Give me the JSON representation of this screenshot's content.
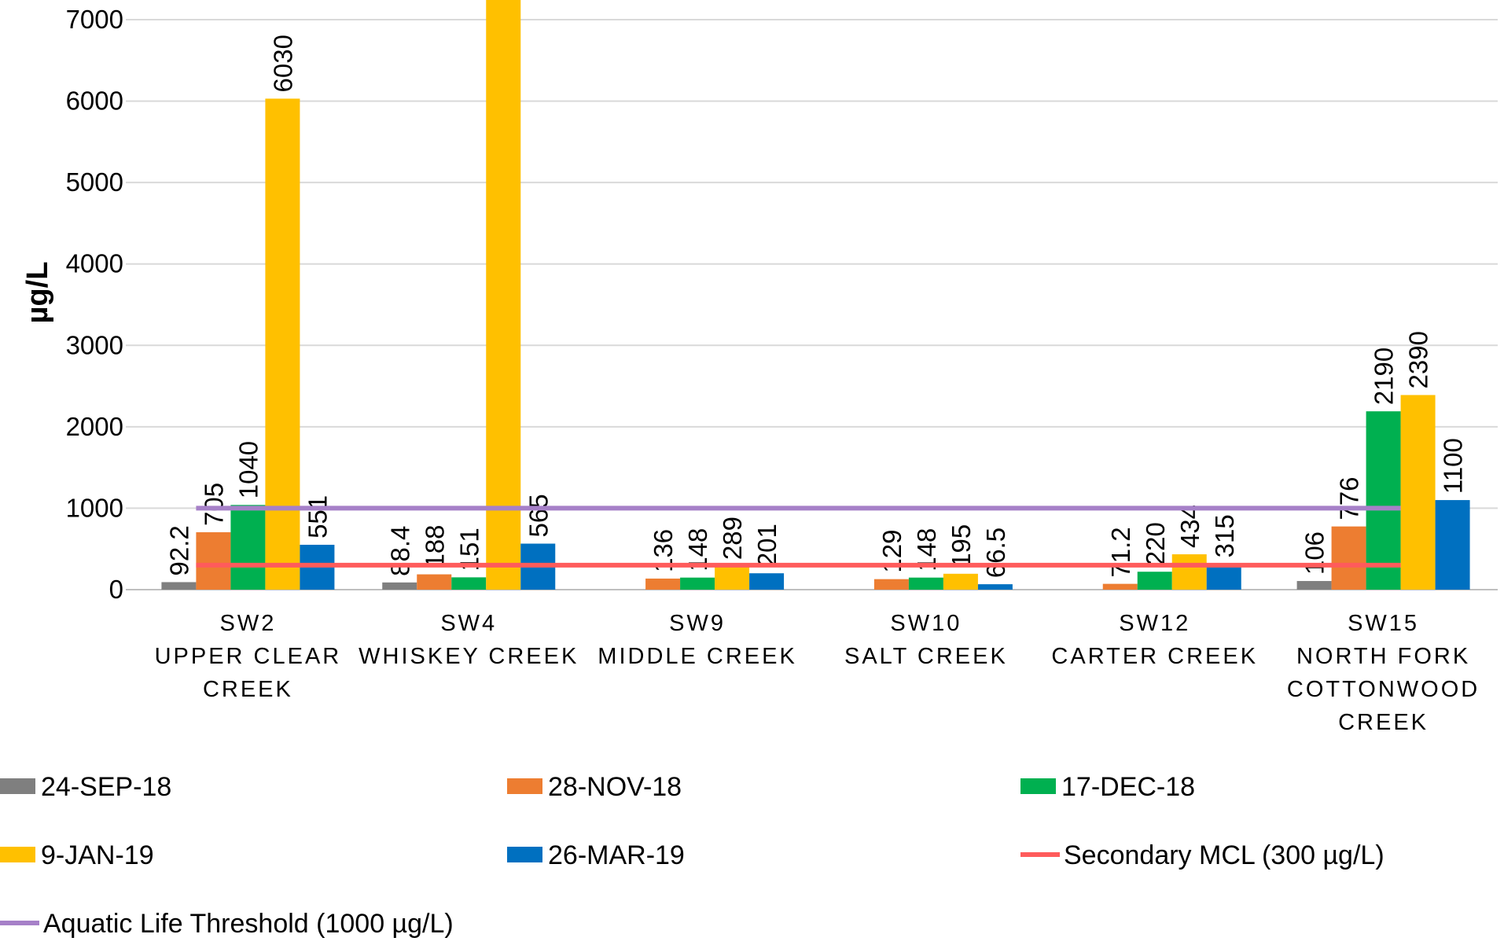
{
  "chart_data": {
    "type": "bar",
    "ylabel": "µg/L",
    "ylim": [
      0,
      7000
    ],
    "yticks": [
      0,
      1000,
      2000,
      3000,
      4000,
      5000,
      6000,
      7000
    ],
    "grid": true,
    "legend_position": "bottom",
    "categories": [
      [
        "SW2",
        "UPPER CLEAR",
        "CREEK"
      ],
      [
        "SW4",
        "WHISKEY CREEK"
      ],
      [
        "SW9",
        "MIDDLE CREEK"
      ],
      [
        "SW10",
        "SALT CREEK"
      ],
      [
        "SW12",
        "CARTER CREEK"
      ],
      [
        "SW15",
        "NORTH FORK",
        "COTTONWOOD",
        "CREEK"
      ]
    ],
    "series": [
      {
        "name": "24-SEP-18",
        "color": "#7f7f7f",
        "values": [
          92.2,
          88.4,
          null,
          null,
          null,
          106
        ],
        "labels": [
          "92.2",
          "88.4",
          "",
          "",
          "",
          "106"
        ]
      },
      {
        "name": "28-NOV-18",
        "color": "#ed7d31",
        "values": [
          705,
          188,
          136,
          129,
          71.2,
          776
        ],
        "labels": [
          "705",
          "188",
          "136",
          "129",
          "71.2",
          "776"
        ]
      },
      {
        "name": "17-DEC-18",
        "color": "#00b050",
        "values": [
          1040,
          151,
          148,
          148,
          220,
          2190
        ],
        "labels": [
          "1040",
          "151",
          "148",
          "148",
          "220",
          "2190"
        ]
      },
      {
        "name": "9-JAN-19",
        "color": "#ffc000",
        "values": [
          6030,
          7400,
          289,
          195,
          434,
          2390
        ],
        "labels": [
          "6030",
          "",
          "289",
          "195",
          "434",
          "2390"
        ]
      },
      {
        "name": "26-MAR-19",
        "color": "#0070c0",
        "values": [
          551,
          565,
          201,
          66.5,
          315,
          1100
        ],
        "labels": [
          "551",
          "565",
          "201",
          "66.5",
          "315",
          "1100"
        ]
      }
    ],
    "reference_lines": [
      {
        "name": "Secondary MCL (300 µg/L)",
        "value": 300,
        "color": "#ff5b5b"
      },
      {
        "name": "Aquatic Life Threshold (1000 µg/L)",
        "value": 1000,
        "color": "#a680c8"
      }
    ]
  }
}
